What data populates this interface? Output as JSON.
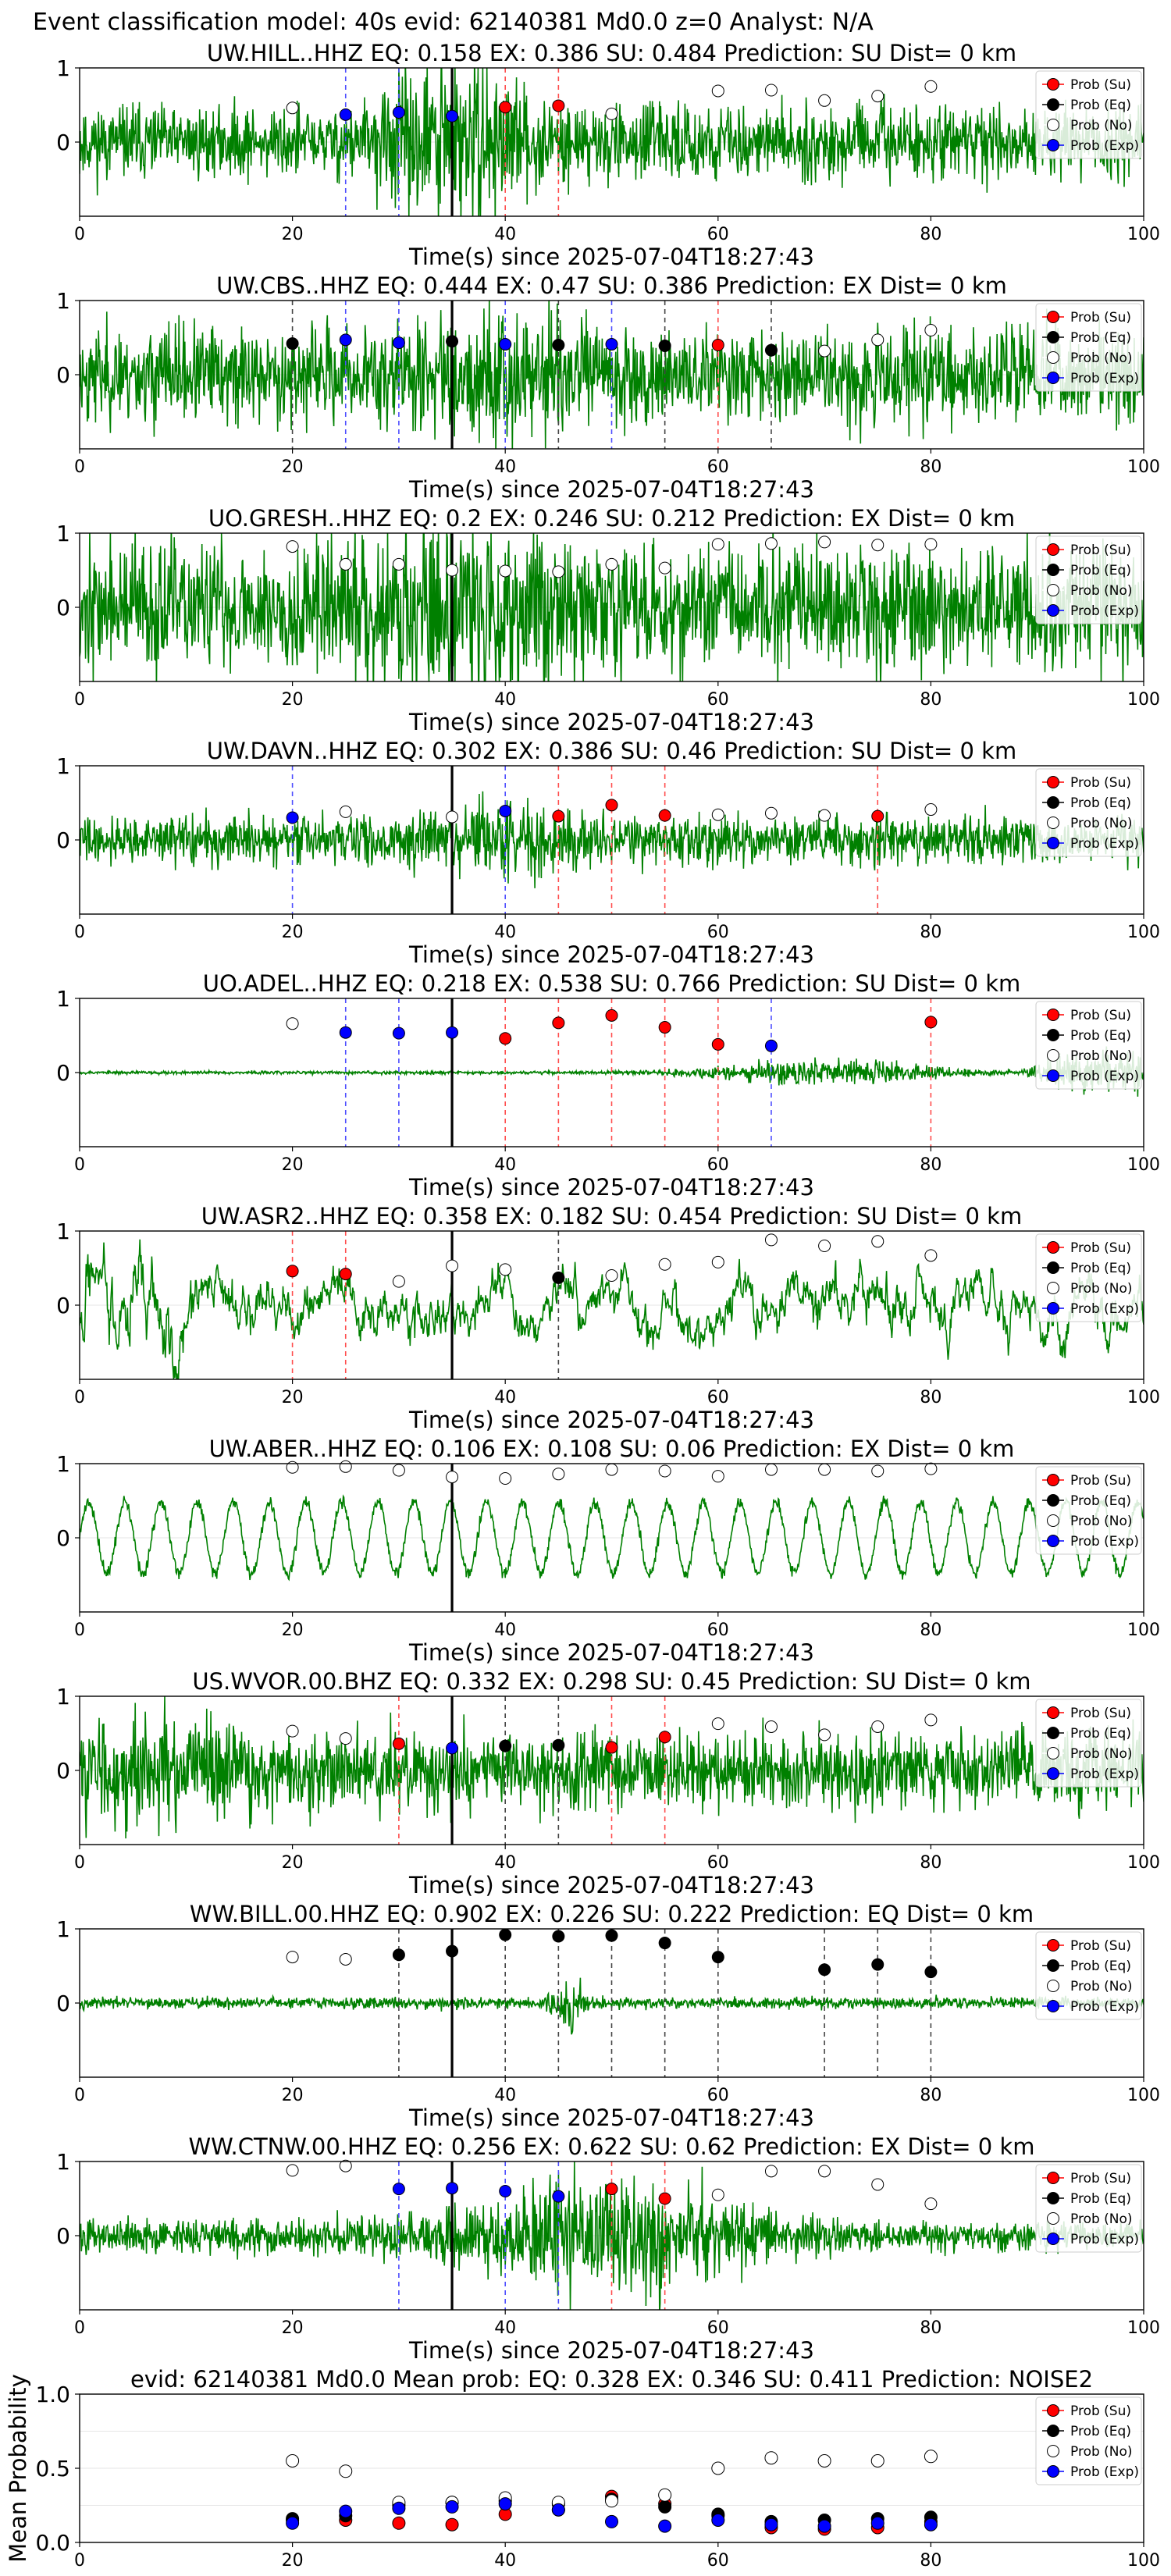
{
  "suptitle": "Event classification model: 40s evid: 62140381 Md0.0 z=0 Analyst: N/A",
  "xlabel": "Time(s) since 2025-07-04T18:27:43",
  "legend": [
    "Prob (Su)",
    "Prob (Eq)",
    "Prob (No)",
    "Prob (Exp)"
  ],
  "colors": {
    "su": "#ff0000",
    "eq": "#000000",
    "no": "#ffffff",
    "exp": "#0000ff",
    "trace": "#008000"
  },
  "chart_data": [
    {
      "type": "scatter",
      "title": "UW.HILL..HHZ   EQ: 0.158  EX: 0.386  SU: 0.484   Prediction: SU    Dist= 0 km",
      "xlim": [
        0,
        100
      ],
      "ylim": [
        -1,
        1
      ],
      "yticks": [
        "0",
        "1"
      ],
      "event_line": 35,
      "trace": {
        "style": "burst",
        "amp": 0.45,
        "seed": 11,
        "burst_center": 35,
        "burst_amp": 1.6
      },
      "points": [
        {
          "x": 20,
          "y": 0.46,
          "class": "no"
        },
        {
          "x": 25,
          "y": 0.37,
          "class": "exp"
        },
        {
          "x": 30,
          "y": 0.4,
          "class": "exp"
        },
        {
          "x": 35,
          "y": 0.35,
          "class": "exp"
        },
        {
          "x": 40,
          "y": 0.47,
          "class": "su"
        },
        {
          "x": 45,
          "y": 0.49,
          "class": "su"
        },
        {
          "x": 50,
          "y": 0.38,
          "class": "no"
        },
        {
          "x": 60,
          "y": 0.69,
          "class": "no"
        },
        {
          "x": 65,
          "y": 0.7,
          "class": "no"
        },
        {
          "x": 70,
          "y": 0.56,
          "class": "no"
        },
        {
          "x": 75,
          "y": 0.62,
          "class": "no"
        },
        {
          "x": 80,
          "y": 0.75,
          "class": "no"
        }
      ]
    },
    {
      "type": "scatter",
      "title": "UW.CBS..HHZ   EQ: 0.444  EX: 0.47  SU: 0.386   Prediction: EX    Dist= 0 km",
      "xlim": [
        0,
        100
      ],
      "ylim": [
        -1,
        1
      ],
      "yticks": [
        "0",
        "1"
      ],
      "event_line": 35,
      "trace": {
        "style": "noise",
        "amp": 0.6,
        "seed": 23,
        "burst_center": 40,
        "burst_amp": 0.4
      },
      "points": [
        {
          "x": 20,
          "y": 0.42,
          "class": "eq"
        },
        {
          "x": 25,
          "y": 0.47,
          "class": "exp"
        },
        {
          "x": 30,
          "y": 0.43,
          "class": "exp"
        },
        {
          "x": 35,
          "y": 0.45,
          "class": "eq"
        },
        {
          "x": 40,
          "y": 0.41,
          "class": "exp"
        },
        {
          "x": 45,
          "y": 0.4,
          "class": "eq"
        },
        {
          "x": 50,
          "y": 0.41,
          "class": "exp"
        },
        {
          "x": 55,
          "y": 0.39,
          "class": "eq"
        },
        {
          "x": 60,
          "y": 0.4,
          "class": "su"
        },
        {
          "x": 65,
          "y": 0.33,
          "class": "eq"
        },
        {
          "x": 70,
          "y": 0.32,
          "class": "no"
        },
        {
          "x": 75,
          "y": 0.47,
          "class": "no"
        },
        {
          "x": 80,
          "y": 0.6,
          "class": "no"
        }
      ]
    },
    {
      "type": "scatter",
      "title": "UO.GRESH..HHZ   EQ: 0.2  EX: 0.246  SU: 0.212   Prediction: EX    Dist= 0 km",
      "xlim": [
        0,
        100
      ],
      "ylim": [
        -1,
        1
      ],
      "yticks": [
        "0",
        "1"
      ],
      "event_line": 35,
      "trace": {
        "style": "noise",
        "amp": 0.8,
        "seed": 37,
        "burst_center": 36,
        "burst_amp": 0.6
      },
      "points": [
        {
          "x": 20,
          "y": 0.82,
          "class": "no"
        },
        {
          "x": 25,
          "y": 0.58,
          "class": "no"
        },
        {
          "x": 30,
          "y": 0.58,
          "class": "no"
        },
        {
          "x": 35,
          "y": 0.5,
          "class": "no"
        },
        {
          "x": 40,
          "y": 0.49,
          "class": "no"
        },
        {
          "x": 45,
          "y": 0.48,
          "class": "no"
        },
        {
          "x": 50,
          "y": 0.58,
          "class": "no"
        },
        {
          "x": 55,
          "y": 0.53,
          "class": "no"
        },
        {
          "x": 60,
          "y": 0.85,
          "class": "no"
        },
        {
          "x": 65,
          "y": 0.86,
          "class": "no"
        },
        {
          "x": 70,
          "y": 0.88,
          "class": "no"
        },
        {
          "x": 75,
          "y": 0.84,
          "class": "no"
        },
        {
          "x": 80,
          "y": 0.85,
          "class": "no"
        }
      ]
    },
    {
      "type": "scatter",
      "title": "UW.DAVN..HHZ   EQ: 0.302  EX: 0.386  SU: 0.46   Prediction: SU    Dist= 0 km",
      "xlim": [
        0,
        100
      ],
      "ylim": [
        -1,
        1
      ],
      "yticks": [
        "0",
        "1"
      ],
      "event_line": 35,
      "trace": {
        "style": "burst",
        "amp": 0.3,
        "seed": 41,
        "burst_center": 40,
        "burst_amp": 0.8
      },
      "points": [
        {
          "x": 20,
          "y": 0.3,
          "class": "exp"
        },
        {
          "x": 25,
          "y": 0.38,
          "class": "no"
        },
        {
          "x": 35,
          "y": 0.31,
          "class": "no"
        },
        {
          "x": 40,
          "y": 0.39,
          "class": "exp"
        },
        {
          "x": 45,
          "y": 0.32,
          "class": "su"
        },
        {
          "x": 50,
          "y": 0.47,
          "class": "su"
        },
        {
          "x": 55,
          "y": 0.33,
          "class": "su"
        },
        {
          "x": 60,
          "y": 0.34,
          "class": "no"
        },
        {
          "x": 65,
          "y": 0.36,
          "class": "no"
        },
        {
          "x": 70,
          "y": 0.33,
          "class": "no"
        },
        {
          "x": 75,
          "y": 0.32,
          "class": "su"
        },
        {
          "x": 80,
          "y": 0.41,
          "class": "no"
        }
      ]
    },
    {
      "type": "scatter",
      "title": "UO.ADEL..HHZ   EQ: 0.218  EX: 0.538  SU: 0.766   Prediction: SU    Dist= 0 km",
      "xlim": [
        0,
        100
      ],
      "ylim": [
        -1,
        1
      ],
      "yticks": [
        "0",
        "1"
      ],
      "event_line": 35,
      "trace": {
        "style": "late",
        "amp": 0.02,
        "seed": 53,
        "burst_center": 75,
        "burst_amp": 0.8
      },
      "points": [
        {
          "x": 20,
          "y": 0.66,
          "class": "no"
        },
        {
          "x": 25,
          "y": 0.54,
          "class": "exp"
        },
        {
          "x": 30,
          "y": 0.53,
          "class": "exp"
        },
        {
          "x": 35,
          "y": 0.54,
          "class": "exp"
        },
        {
          "x": 40,
          "y": 0.46,
          "class": "su"
        },
        {
          "x": 45,
          "y": 0.67,
          "class": "su"
        },
        {
          "x": 50,
          "y": 0.77,
          "class": "su"
        },
        {
          "x": 55,
          "y": 0.61,
          "class": "su"
        },
        {
          "x": 60,
          "y": 0.38,
          "class": "su"
        },
        {
          "x": 65,
          "y": 0.36,
          "class": "exp"
        },
        {
          "x": 80,
          "y": 0.68,
          "class": "su"
        }
      ]
    },
    {
      "type": "scatter",
      "title": "UW.ASR2..HHZ   EQ: 0.358  EX: 0.182  SU: 0.454   Prediction: SU    Dist= 0 km",
      "xlim": [
        0,
        100
      ],
      "ylim": [
        -1,
        1
      ],
      "yticks": [
        "0",
        "1"
      ],
      "event_line": 35,
      "trace": {
        "style": "lowfreq",
        "amp": 0.5,
        "seed": 67,
        "burst_center": 5,
        "burst_amp": 0.6
      },
      "points": [
        {
          "x": 20,
          "y": 0.46,
          "class": "su"
        },
        {
          "x": 25,
          "y": 0.42,
          "class": "su"
        },
        {
          "x": 30,
          "y": 0.32,
          "class": "no"
        },
        {
          "x": 35,
          "y": 0.53,
          "class": "no"
        },
        {
          "x": 40,
          "y": 0.48,
          "class": "no"
        },
        {
          "x": 45,
          "y": 0.37,
          "class": "eq"
        },
        {
          "x": 50,
          "y": 0.4,
          "class": "no"
        },
        {
          "x": 55,
          "y": 0.55,
          "class": "no"
        },
        {
          "x": 60,
          "y": 0.58,
          "class": "no"
        },
        {
          "x": 65,
          "y": 0.88,
          "class": "no"
        },
        {
          "x": 70,
          "y": 0.8,
          "class": "no"
        },
        {
          "x": 75,
          "y": 0.86,
          "class": "no"
        },
        {
          "x": 80,
          "y": 0.67,
          "class": "no"
        }
      ]
    },
    {
      "type": "scatter",
      "title": "UW.ABER..HHZ   EQ: 0.106  EX: 0.108  SU: 0.06   Prediction: EX    Dist= 0 km",
      "xlim": [
        0,
        100
      ],
      "ylim": [
        -1,
        1
      ],
      "yticks": [
        "0",
        "1"
      ],
      "event_line": 35,
      "trace": {
        "style": "sine",
        "amp": 0.65,
        "seed": 71,
        "burst_center": 50,
        "burst_amp": 0.0
      },
      "points": [
        {
          "x": 20,
          "y": 0.95,
          "class": "no"
        },
        {
          "x": 25,
          "y": 0.96,
          "class": "no"
        },
        {
          "x": 30,
          "y": 0.91,
          "class": "no"
        },
        {
          "x": 35,
          "y": 0.82,
          "class": "no"
        },
        {
          "x": 40,
          "y": 0.8,
          "class": "no"
        },
        {
          "x": 45,
          "y": 0.86,
          "class": "no"
        },
        {
          "x": 50,
          "y": 0.92,
          "class": "no"
        },
        {
          "x": 55,
          "y": 0.9,
          "class": "no"
        },
        {
          "x": 60,
          "y": 0.83,
          "class": "no"
        },
        {
          "x": 65,
          "y": 0.92,
          "class": "no"
        },
        {
          "x": 70,
          "y": 0.92,
          "class": "no"
        },
        {
          "x": 75,
          "y": 0.9,
          "class": "no"
        },
        {
          "x": 80,
          "y": 0.93,
          "class": "no"
        }
      ]
    },
    {
      "type": "scatter",
      "title": "US.WVOR.00.BHZ   EQ: 0.332  EX: 0.298  SU: 0.45   Prediction: SU    Dist= 0 km",
      "xlim": [
        0,
        100
      ],
      "ylim": [
        -1,
        1
      ],
      "yticks": [
        "0",
        "1"
      ],
      "event_line": 35,
      "trace": {
        "style": "noise",
        "amp": 0.5,
        "seed": 83,
        "burst_center": 8,
        "burst_amp": 0.4
      },
      "points": [
        {
          "x": 20,
          "y": 0.53,
          "class": "no"
        },
        {
          "x": 25,
          "y": 0.43,
          "class": "no"
        },
        {
          "x": 30,
          "y": 0.36,
          "class": "su"
        },
        {
          "x": 35,
          "y": 0.3,
          "class": "exp"
        },
        {
          "x": 40,
          "y": 0.33,
          "class": "eq"
        },
        {
          "x": 45,
          "y": 0.34,
          "class": "eq"
        },
        {
          "x": 50,
          "y": 0.31,
          "class": "su"
        },
        {
          "x": 55,
          "y": 0.45,
          "class": "su"
        },
        {
          "x": 60,
          "y": 0.63,
          "class": "no"
        },
        {
          "x": 65,
          "y": 0.59,
          "class": "no"
        },
        {
          "x": 70,
          "y": 0.48,
          "class": "no"
        },
        {
          "x": 75,
          "y": 0.59,
          "class": "no"
        },
        {
          "x": 80,
          "y": 0.68,
          "class": "no"
        }
      ]
    },
    {
      "type": "scatter",
      "title": "WW.BILL.00.HHZ   EQ: 0.902  EX: 0.226  SU: 0.222   Prediction: EQ    Dist= 0 km",
      "xlim": [
        0,
        100
      ],
      "ylim": [
        -1,
        1
      ],
      "yticks": [
        "0",
        "1"
      ],
      "event_line": 35,
      "trace": {
        "style": "quiet",
        "amp": 0.07,
        "seed": 97,
        "burst_center": 46,
        "burst_amp": 0.45
      },
      "points": [
        {
          "x": 20,
          "y": 0.62,
          "class": "no"
        },
        {
          "x": 25,
          "y": 0.59,
          "class": "no"
        },
        {
          "x": 30,
          "y": 0.65,
          "class": "eq"
        },
        {
          "x": 35,
          "y": 0.7,
          "class": "eq"
        },
        {
          "x": 40,
          "y": 0.92,
          "class": "eq"
        },
        {
          "x": 45,
          "y": 0.9,
          "class": "eq"
        },
        {
          "x": 50,
          "y": 0.91,
          "class": "eq"
        },
        {
          "x": 55,
          "y": 0.81,
          "class": "eq"
        },
        {
          "x": 60,
          "y": 0.62,
          "class": "eq"
        },
        {
          "x": 70,
          "y": 0.45,
          "class": "eq"
        },
        {
          "x": 75,
          "y": 0.52,
          "class": "eq"
        },
        {
          "x": 80,
          "y": 0.42,
          "class": "eq"
        }
      ]
    },
    {
      "type": "scatter",
      "title": "WW.CTNW.00.HHZ   EQ: 0.256  EX: 0.622  SU: 0.62   Prediction: EX    Dist= 0 km",
      "xlim": [
        0,
        100
      ],
      "ylim": [
        -1,
        1
      ],
      "yticks": [
        "0",
        "1"
      ],
      "event_line": 35,
      "trace": {
        "style": "growing",
        "amp": 0.25,
        "seed": 101,
        "burst_center": 50,
        "burst_amp": 0.7
      },
      "points": [
        {
          "x": 20,
          "y": 0.88,
          "class": "no"
        },
        {
          "x": 25,
          "y": 0.94,
          "class": "no"
        },
        {
          "x": 30,
          "y": 0.63,
          "class": "exp"
        },
        {
          "x": 35,
          "y": 0.64,
          "class": "exp"
        },
        {
          "x": 40,
          "y": 0.6,
          "class": "exp"
        },
        {
          "x": 45,
          "y": 0.53,
          "class": "exp"
        },
        {
          "x": 50,
          "y": 0.63,
          "class": "su"
        },
        {
          "x": 55,
          "y": 0.5,
          "class": "su"
        },
        {
          "x": 60,
          "y": 0.55,
          "class": "no"
        },
        {
          "x": 65,
          "y": 0.87,
          "class": "no"
        },
        {
          "x": 70,
          "y": 0.87,
          "class": "no"
        },
        {
          "x": 75,
          "y": 0.69,
          "class": "no"
        },
        {
          "x": 80,
          "y": 0.43,
          "class": "no"
        }
      ]
    },
    {
      "type": "scatter",
      "title": "evid: 62140381  Md0.0   Mean prob:   EQ: 0.328  EX: 0.346  SU: 0.411   Prediction: NOISE2",
      "ylabel": "Mean Probability",
      "xlim": [
        0,
        100
      ],
      "ylim": [
        0,
        1
      ],
      "yticks": [
        "0.0",
        "0.5",
        "1.0"
      ],
      "series": [
        {
          "name": "Prob (Su)",
          "class": "su",
          "x": [
            20,
            25,
            30,
            35,
            40,
            45,
            50,
            55,
            60,
            65,
            70,
            75,
            80
          ],
          "y": [
            0.15,
            0.15,
            0.13,
            0.12,
            0.19,
            0.22,
            0.31,
            0.26,
            0.18,
            0.1,
            0.09,
            0.1,
            0.14
          ]
        },
        {
          "name": "Prob (Eq)",
          "class": "eq",
          "x": [
            20,
            25,
            30,
            35,
            40,
            45,
            50,
            55,
            60,
            65,
            70,
            75,
            80
          ],
          "y": [
            0.16,
            0.18,
            0.25,
            0.27,
            0.28,
            0.26,
            0.29,
            0.24,
            0.19,
            0.14,
            0.15,
            0.16,
            0.17
          ]
        },
        {
          "name": "Prob (No)",
          "class": "no",
          "x": [
            20,
            25,
            30,
            35,
            40,
            45,
            50,
            55,
            60,
            65,
            70,
            75,
            80
          ],
          "y": [
            0.55,
            0.48,
            0.27,
            0.27,
            0.3,
            0.27,
            0.28,
            0.32,
            0.5,
            0.57,
            0.55,
            0.55,
            0.58
          ]
        },
        {
          "name": "Prob (Exp)",
          "class": "exp",
          "x": [
            20,
            25,
            30,
            35,
            40,
            45,
            50,
            55,
            60,
            65,
            70,
            75,
            80
          ],
          "y": [
            0.13,
            0.21,
            0.23,
            0.24,
            0.26,
            0.22,
            0.14,
            0.11,
            0.15,
            0.12,
            0.11,
            0.13,
            0.12
          ]
        }
      ]
    }
  ]
}
